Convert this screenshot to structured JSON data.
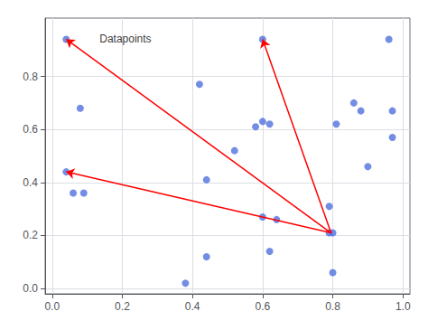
{
  "chart_data": {
    "type": "scatter",
    "x": [
      0.04,
      0.08,
      0.04,
      0.06,
      0.09,
      0.38,
      0.42,
      0.44,
      0.44,
      0.58,
      0.6,
      0.62,
      0.52,
      0.6,
      0.6,
      0.64,
      0.62,
      0.79,
      0.8,
      0.79,
      0.8,
      0.81,
      0.86,
      0.88,
      0.9,
      0.96,
      0.97,
      0.97
    ],
    "values": [
      0.94,
      0.68,
      0.44,
      0.36,
      0.36,
      0.02,
      0.77,
      0.41,
      0.12,
      0.61,
      0.63,
      0.62,
      0.52,
      0.27,
      0.94,
      0.26,
      0.14,
      0.21,
      0.21,
      0.31,
      0.06,
      0.62,
      0.7,
      0.67,
      0.46,
      0.94,
      0.67,
      0.57
    ],
    "arrows": [
      {
        "start": [
          0.795,
          0.21
        ],
        "end": [
          0.04,
          0.94
        ],
        "color": "red"
      },
      {
        "start": [
          0.795,
          0.21
        ],
        "end": [
          0.6,
          0.94
        ],
        "color": "red"
      },
      {
        "start": [
          0.795,
          0.21
        ],
        "end": [
          0.04,
          0.44
        ],
        "color": "red"
      }
    ],
    "annotations": [
      {
        "text": "Datapoints",
        "x": 0.135,
        "y": 0.94
      }
    ],
    "xlim": [
      -0.02,
      1.02
    ],
    "ylim": [
      -0.02,
      1.02
    ],
    "xticks": [
      {
        "value": 0.0,
        "label": "0.0"
      },
      0.2,
      0.4,
      0.6,
      0.8,
      {
        "value": 1.0,
        "label": "1.0"
      }
    ],
    "yticks": [
      {
        "value": 0.0,
        "label": "0.0"
      },
      0.2,
      0.4,
      0.6,
      0.8
    ],
    "grid": true
  }
}
